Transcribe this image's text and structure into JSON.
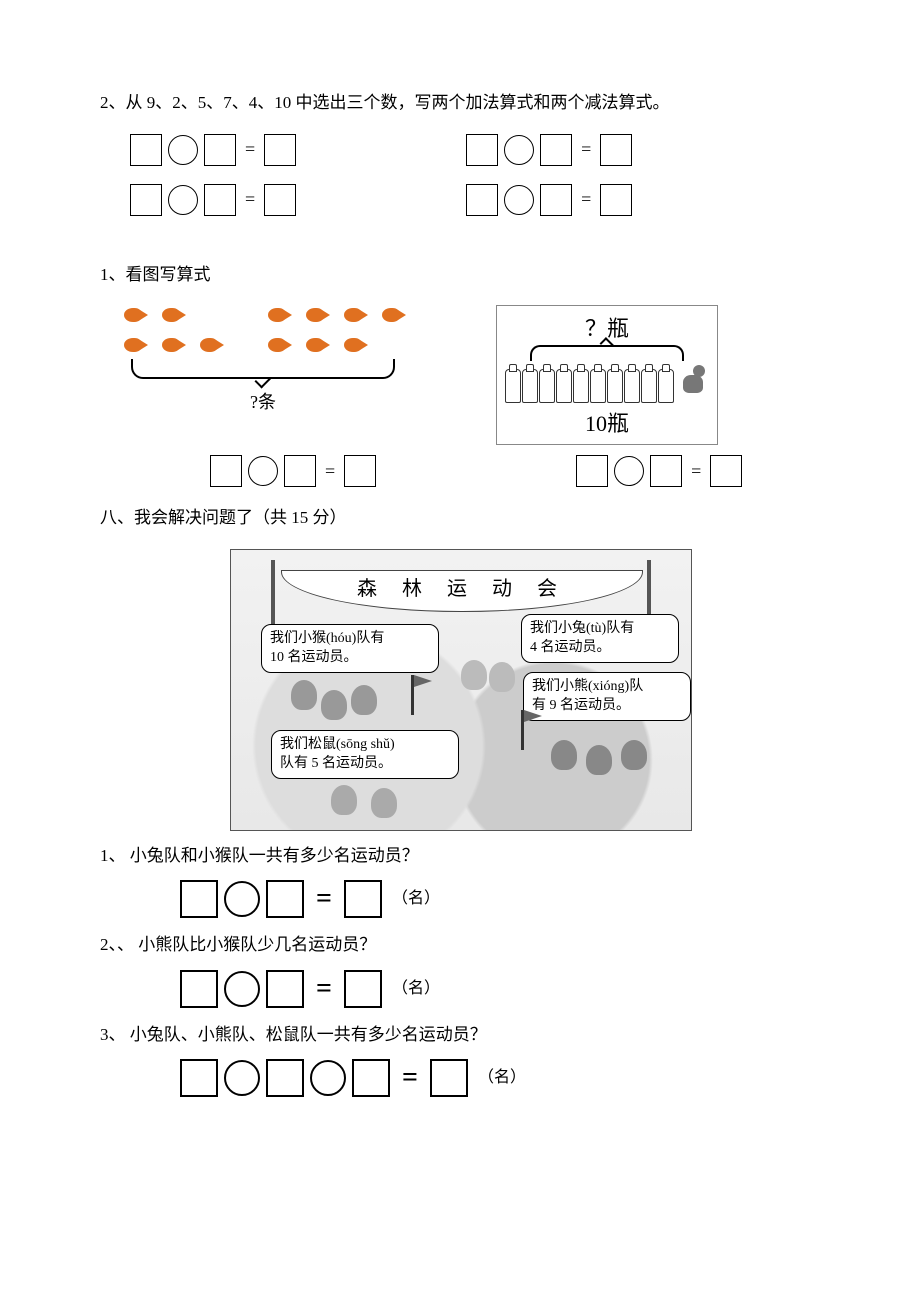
{
  "colors": {
    "text": "#000000",
    "bg": "#ffffff",
    "fish": "#e07020",
    "border": "#000000"
  },
  "fonts": {
    "family": "SimSun",
    "body_size_pt": 13,
    "eq_sign_big_pt": 21
  },
  "q2": {
    "title": "2、从 9、2、5、7、4、10 中选出三个数，写两个加法算式和两个减法算式。",
    "numbers": [
      9,
      2,
      5,
      7,
      4,
      10
    ],
    "equations": [
      {
        "boxes": 3,
        "circles": 1,
        "pattern": "sq ci sq = sq"
      },
      {
        "boxes": 3,
        "circles": 1,
        "pattern": "sq ci sq = sq"
      },
      {
        "boxes": 3,
        "circles": 1,
        "pattern": "sq ci sq = sq"
      },
      {
        "boxes": 3,
        "circles": 1,
        "pattern": "sq ci sq = sq"
      }
    ]
  },
  "q1": {
    "title": "1、看图写算式",
    "fish": {
      "group_a_rows": [
        2,
        3
      ],
      "group_b_rows": [
        4,
        3
      ],
      "total_label": "?条",
      "equation": {
        "pattern": "sq ci sq = sq"
      }
    },
    "bottles": {
      "question_label": "？瓶",
      "visible_bottles": 10,
      "total_label": "10瓶",
      "equation": {
        "pattern": "sq ci sq = sq"
      }
    }
  },
  "section8": {
    "heading": "八、我会解决问题了（共 15 分）",
    "banner": "森 林 运 动 会",
    "speech": {
      "monkey": "我们小猴(hóu)队有\n10 名运动员。",
      "rabbit": "我们小兔(tù)队有\n4 名运动员。",
      "bear": "我们小熊(xióng)队\n有 9 名运动员。",
      "squirrel": "我们松鼠(sōng shǔ)\n队有 5 名运动员。"
    },
    "teams": {
      "monkey": 10,
      "rabbit": 4,
      "bear": 9,
      "squirrel": 5
    },
    "questions": [
      {
        "num": "1、",
        "text": "小兔队和小猴队一共有多少名运动员？",
        "pattern": "sq ci sq = sq",
        "unit": "（名）"
      },
      {
        "num": "2、、",
        "text": "小熊队比小猴队少几名运动员？",
        "pattern": "sq ci sq = sq",
        "unit": "（名）"
      },
      {
        "num": "3、",
        "text": "小兔队、小熊队、松鼠队一共有多少名运动员？",
        "pattern": "sq ci sq ci sq = sq",
        "unit": "（名）"
      }
    ]
  }
}
